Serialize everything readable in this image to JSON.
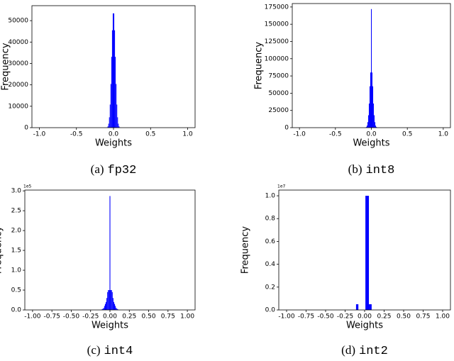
{
  "chart_data": [
    {
      "type": "histogram",
      "caption": {
        "label": "(a)",
        "code": "fp32"
      },
      "xlabel": "Weights",
      "ylabel": "Frequency",
      "color": "#0000ff",
      "bins": [
        -0.1,
        -0.09,
        -0.08,
        -0.07,
        -0.06,
        -0.05,
        -0.04,
        -0.03,
        -0.02,
        -0.01,
        0,
        0.01,
        0.02,
        0.03,
        0.04,
        0.05,
        0.06,
        0.07,
        0.08,
        0.09,
        0.1
      ],
      "counts": [
        50,
        160,
        600,
        1850,
        4850,
        10800,
        20400,
        33100,
        45500,
        53400,
        53400,
        45500,
        33100,
        20400,
        10800,
        4850,
        1850,
        600,
        160,
        50
      ],
      "xlim": [
        -1.1,
        1.1
      ],
      "xticks": [
        {
          "value": -1,
          "label": "-1.0"
        },
        {
          "value": -0.5,
          "label": "-0.5"
        },
        {
          "value": 0,
          "label": "0.0"
        },
        {
          "value": 0.5,
          "label": "0.5"
        },
        {
          "value": 1,
          "label": "1.0"
        }
      ],
      "ylim": [
        0,
        57000
      ],
      "yticks": [
        0,
        10000,
        20000,
        30000,
        40000,
        50000
      ]
    },
    {
      "type": "histogram",
      "caption": {
        "label": "(b)",
        "code": "int8"
      },
      "xlabel": "Weights",
      "ylabel": "Frequency",
      "color": "#0000ff",
      "bins": [
        -0.105,
        -0.095,
        -0.085,
        -0.075,
        -0.065,
        -0.055,
        -0.045,
        -0.035,
        -0.025,
        -0.015,
        -0.005,
        0.005,
        0.015,
        0.025,
        0.035,
        0.045,
        0.055,
        0.065,
        0.075,
        0.085,
        0.095,
        0.105
      ],
      "counts": [
        40,
        100,
        300,
        1000,
        3000,
        8000,
        18000,
        35000,
        60000,
        80000,
        172000,
        80000,
        60000,
        35000,
        18000,
        8000,
        3000,
        1000,
        300,
        100,
        40
      ],
      "xlim": [
        -1.1,
        1.1
      ],
      "xticks": [
        {
          "value": -1,
          "label": "-1.0"
        },
        {
          "value": -0.5,
          "label": "-0.5"
        },
        {
          "value": 0,
          "label": "0.0"
        },
        {
          "value": 0.5,
          "label": "0.5"
        },
        {
          "value": 1,
          "label": "1.0"
        }
      ],
      "ylim": [
        0,
        180000
      ],
      "yticks": [
        0,
        25000,
        50000,
        75000,
        100000,
        125000,
        150000,
        175000
      ]
    },
    {
      "type": "histogram",
      "caption": {
        "label": "(c)",
        "code": "int4"
      },
      "xlabel": "Weights",
      "ylabel": "Frequency",
      "y_offset_label": "1e5",
      "color": "#0000ff",
      "bins": [
        -0.105,
        -0.095,
        -0.085,
        -0.075,
        -0.065,
        -0.055,
        -0.045,
        -0.035,
        -0.025,
        -0.015,
        -0.005,
        0.005,
        0.015,
        0.025,
        0.035,
        0.045,
        0.055,
        0.065,
        0.075,
        0.085,
        0.095,
        0.105
      ],
      "counts": [
        0.02,
        0.03,
        0.05,
        0.1,
        0.15,
        0.2,
        0.3,
        0.45,
        0.5,
        0.5,
        2.87,
        0.5,
        0.5,
        0.45,
        0.3,
        0.2,
        0.15,
        0.1,
        0.05,
        0.03,
        0.02
      ],
      "xlim": [
        -1.1,
        1.1
      ],
      "xticks": [
        {
          "value": -1,
          "label": "-1.00"
        },
        {
          "value": -0.75,
          "label": "-0.75"
        },
        {
          "value": -0.5,
          "label": "-0.50"
        },
        {
          "value": -0.25,
          "label": "-0.25"
        },
        {
          "value": 0,
          "label": "0.00"
        },
        {
          "value": 0.25,
          "label": "0.25"
        },
        {
          "value": 0.5,
          "label": "0.50"
        },
        {
          "value": 0.75,
          "label": "0.75"
        },
        {
          "value": 1,
          "label": "1.00"
        }
      ],
      "ylim": [
        0,
        3.02
      ],
      "yticks": [
        {
          "value": 0,
          "label": "0.0"
        },
        {
          "value": 0.5,
          "label": "0.5"
        },
        {
          "value": 1,
          "label": "1.0"
        },
        {
          "value": 1.5,
          "label": "1.5"
        },
        {
          "value": 2,
          "label": "2.0"
        },
        {
          "value": 2.5,
          "label": "2.5"
        },
        {
          "value": 3,
          "label": "3.0"
        }
      ]
    },
    {
      "type": "histogram",
      "caption": {
        "label": "(d)",
        "code": "int2"
      },
      "xlabel": "Weights",
      "ylabel": "Frequency",
      "y_offset_label": "1e7",
      "color": "#0000ff",
      "bins": [
        -0.11,
        -0.08,
        -0.05,
        -0.02,
        0.01,
        0.055,
        0.09
      ],
      "counts": [
        0.05,
        0,
        0,
        0,
        1.0,
        0.05
      ],
      "xlim": [
        -1.1,
        1.1
      ],
      "xticks": [
        {
          "value": -1,
          "label": "-1.00"
        },
        {
          "value": -0.75,
          "label": "-0.75"
        },
        {
          "value": -0.5,
          "label": "-0.50"
        },
        {
          "value": -0.25,
          "label": "-0.25"
        },
        {
          "value": 0,
          "label": "0.00"
        },
        {
          "value": 0.25,
          "label": "0.25"
        },
        {
          "value": 0.5,
          "label": "0.50"
        },
        {
          "value": 0.75,
          "label": "0.75"
        },
        {
          "value": 1,
          "label": "1.00"
        }
      ],
      "ylim": [
        0,
        1.05
      ],
      "yticks": [
        {
          "value": 0,
          "label": "0.0"
        },
        {
          "value": 0.2,
          "label": "0.2"
        },
        {
          "value": 0.4,
          "label": "0.4"
        },
        {
          "value": 0.6,
          "label": "0.6"
        },
        {
          "value": 0.8,
          "label": "0.8"
        },
        {
          "value": 1,
          "label": "1.0"
        }
      ]
    }
  ]
}
